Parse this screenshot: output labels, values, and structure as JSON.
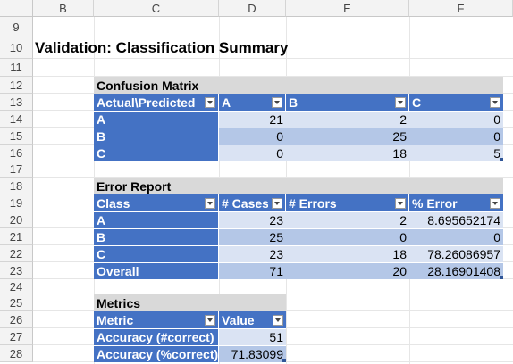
{
  "columns": [
    "B",
    "C",
    "D",
    "E",
    "F"
  ],
  "rows": [
    "9",
    "10",
    "11",
    "12",
    "13",
    "14",
    "15",
    "16",
    "17",
    "18",
    "19",
    "20",
    "21",
    "22",
    "23",
    "24",
    "25",
    "26",
    "27",
    "28"
  ],
  "title": "Validation: Classification Summary",
  "confusion": {
    "title": "Confusion Matrix",
    "headers": [
      "Actual\\Predicted",
      "A",
      "B",
      "C"
    ],
    "rows": [
      {
        "label": "A",
        "values": [
          "21",
          "2",
          "0"
        ]
      },
      {
        "label": "B",
        "values": [
          "0",
          "25",
          "0"
        ]
      },
      {
        "label": "C",
        "values": [
          "0",
          "18",
          "5"
        ]
      }
    ]
  },
  "errors": {
    "title": "Error Report",
    "headers": [
      "Class",
      "# Cases",
      "# Errors",
      "% Error"
    ],
    "rows": [
      {
        "label": "A",
        "values": [
          "23",
          "2",
          "8.695652174"
        ]
      },
      {
        "label": "B",
        "values": [
          "25",
          "0",
          "0"
        ]
      },
      {
        "label": "C",
        "values": [
          "23",
          "18",
          "78.26086957"
        ]
      },
      {
        "label": "Overall",
        "values": [
          "71",
          "20",
          "28.16901408"
        ]
      }
    ]
  },
  "metrics": {
    "title": "Metrics",
    "headers": [
      "Metric",
      "Value"
    ],
    "rows": [
      {
        "label": "Accuracy (#correct)",
        "value": "51"
      },
      {
        "label": "Accuracy (%correct)",
        "value": "71.83099"
      }
    ]
  },
  "colors": {
    "header": "#4472c4",
    "band_light": "#dae3f3",
    "band_dark": "#b4c7e7",
    "title_bg": "#d9d9d9"
  },
  "icons": {
    "filter": "dropdown-filter-icon"
  }
}
